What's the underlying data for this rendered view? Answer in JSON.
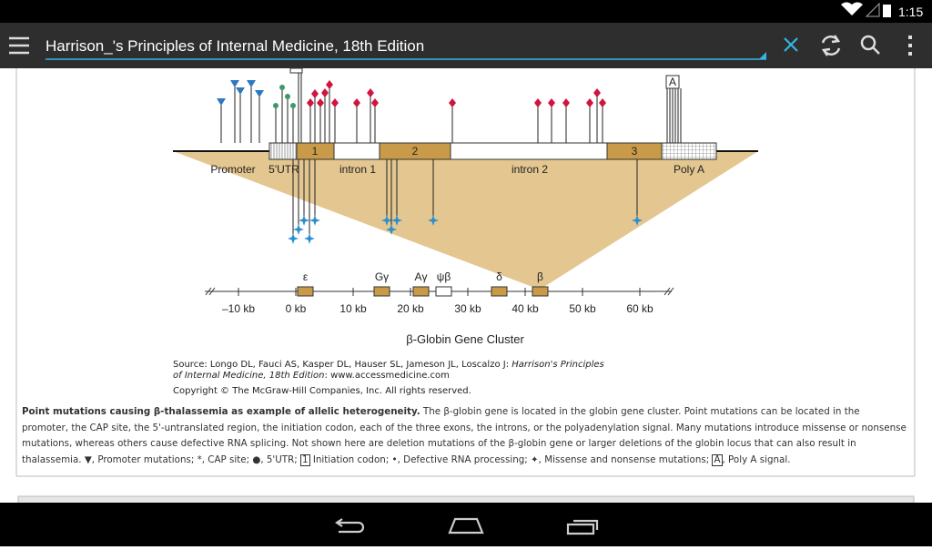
{
  "status_bar": {
    "time": "1:15"
  },
  "app_bar": {
    "title": "Harrison_'s Principles of Internal Medicine, 18th Edition"
  },
  "figure": {
    "regions": [
      "Promoter",
      "5'UTR",
      "intron 1",
      "intron 2",
      "Poly A"
    ],
    "exons": [
      "1",
      "2",
      "3"
    ],
    "polya_signal": "A",
    "genes": [
      "ε",
      "Gγ",
      "Aγ",
      "ψβ",
      "δ",
      "β"
    ],
    "axis_labels": [
      "–10 kb",
      "0 kb",
      "10 kb",
      "20 kb",
      "30 kb",
      "40 kb",
      "50 kb",
      "60 kb"
    ],
    "cluster_title": "β-Globin Gene Cluster",
    "source_prefix": "Source: Longo DL, Fauci AS, Kasper DL, Hauser SL, Jameson JL, Loscalzo J: ",
    "source_book": "Harrison's Principles of Internal Medicine, 18th Edition",
    "source_suffix": ": www.accessmedicine.com",
    "copyright": "Copyright © The McGraw-Hill Companies, Inc. All rights reserved."
  },
  "caption": {
    "bold": "Point mutations causing β-thalassemia as example of allelic heterogeneity.",
    "body_1": " The β-globin gene is located in the globin gene cluster. Point mutations can be located in the promoter, the CAP site, the 5'-untranslated region, the initiation codon, each of the three exons, the introns, or the polyadenylation signal. Many mutations introduce missense or nonsense mutations, whereas others cause defective RNA splicing. Not shown here are deletion mutations of the β-globin gene or larger deletions of the globin locus that can also result in thalassemia. ▼, Promoter mutations; *, CAP site; ●, 5'UTR; ",
    "box_1": "1",
    "body_2": " Initiation codon; •, Defective RNA processing; ✦, Missense and nonsense mutations; ",
    "box_2": "A",
    "body_3": ", Poly A signal."
  }
}
